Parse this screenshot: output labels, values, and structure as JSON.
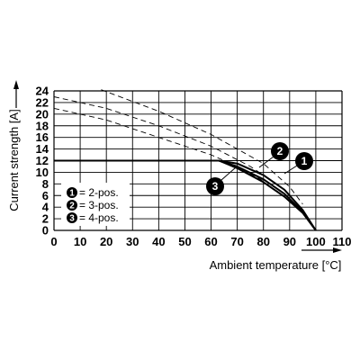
{
  "chart_data": {
    "type": "line",
    "xlabel": "Ambient temperature [°C]",
    "ylabel": "Current strength [A]",
    "xlim": [
      0,
      110
    ],
    "ylim": [
      0,
      24
    ],
    "x_ticks": [
      0,
      10,
      20,
      30,
      40,
      50,
      60,
      70,
      80,
      90,
      100,
      110
    ],
    "y_ticks": [
      0,
      2,
      4,
      6,
      8,
      10,
      12,
      14,
      16,
      18,
      20,
      22,
      24
    ],
    "grid": true,
    "legend_position": "bottom-left",
    "legend": [
      {
        "num": "1",
        "label": "= 2-pos."
      },
      {
        "num": "2",
        "label": "= 3-pos."
      },
      {
        "num": "3",
        "label": "= 4-pos."
      }
    ],
    "series": [
      {
        "num": "1",
        "style": "solid",
        "x": [
          0,
          63,
          70,
          80,
          88,
          95,
          100
        ],
        "y": [
          12,
          12,
          11.5,
          9.5,
          7,
          3.5,
          0
        ]
      },
      {
        "num": "2",
        "style": "solid",
        "x": [
          0,
          63,
          70,
          80,
          88,
          95,
          100
        ],
        "y": [
          12,
          12,
          11,
          8.8,
          6.3,
          3.2,
          0
        ]
      },
      {
        "num": "3",
        "style": "solid",
        "x": [
          0,
          63,
          70,
          80,
          88,
          95,
          100
        ],
        "y": [
          12,
          12,
          10.7,
          8.3,
          5.8,
          3,
          0
        ]
      },
      {
        "num": "1",
        "style": "dashed",
        "x": [
          18,
          40,
          60,
          80,
          90,
          95
        ],
        "y": [
          24.2,
          20.5,
          16.5,
          11.5,
          7.5,
          4.5
        ]
      },
      {
        "num": "2",
        "style": "dashed",
        "x": [
          0,
          20,
          40,
          60,
          75,
          85
        ],
        "y": [
          23,
          21,
          18,
          14.5,
          11,
          8
        ]
      },
      {
        "num": "3",
        "style": "dashed",
        "x": [
          0,
          20,
          40,
          60,
          70,
          80
        ],
        "y": [
          21,
          19,
          16,
          13,
          11,
          8.5
        ]
      }
    ],
    "colors": {
      "line": "#000000",
      "grid": "#000000",
      "badge": "#000000"
    }
  }
}
